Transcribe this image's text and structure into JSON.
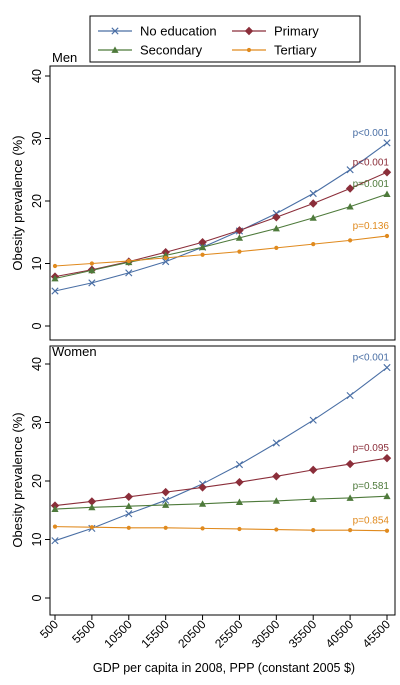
{
  "legend": {
    "items": [
      {
        "label": "No education",
        "color": "#4a6fa5",
        "marker": "x"
      },
      {
        "label": "Primary",
        "color": "#8b2e3a",
        "marker": "diamond"
      },
      {
        "label": "Secondary",
        "color": "#4e7a3b",
        "marker": "triangle"
      },
      {
        "label": "Tertiary",
        "color": "#e08a1e",
        "marker": "dot"
      }
    ]
  },
  "shared": {
    "ylabel": "Obesity prevalence (%)",
    "xlabel": "GDP per capita in 2008, PPP (constant 2005 $)"
  },
  "chart_data": [
    {
      "type": "line",
      "title": "Men",
      "xlabel": "GDP per capita in 2008, PPP (constant 2005 $)",
      "ylabel": "Obesity prevalence (%)",
      "x": [
        500,
        5500,
        10500,
        15500,
        20500,
        25500,
        30500,
        35500,
        40500,
        45500
      ],
      "ylim": [
        0,
        40
      ],
      "yticks": [
        0,
        10,
        20,
        30,
        40
      ],
      "grid": false,
      "legend_position": "top",
      "series": [
        {
          "name": "No education",
          "color": "#4a6fa5",
          "marker": "x",
          "values": [
            5.6,
            6.9,
            8.5,
            10.3,
            12.6,
            15.2,
            18.0,
            21.2,
            25.0,
            29.3
          ],
          "pvalue": "p<0.001"
        },
        {
          "name": "Primary",
          "color": "#8b2e3a",
          "marker": "diamond",
          "values": [
            7.9,
            9.0,
            10.3,
            11.8,
            13.4,
            15.3,
            17.4,
            19.6,
            22.0,
            24.6
          ],
          "pvalue": "p<0.001"
        },
        {
          "name": "Secondary",
          "color": "#4e7a3b",
          "marker": "triangle",
          "values": [
            7.6,
            8.9,
            10.2,
            11.3,
            12.6,
            14.1,
            15.6,
            17.3,
            19.1,
            21.1
          ],
          "pvalue": "p=0.001"
        },
        {
          "name": "Tertiary",
          "color": "#e08a1e",
          "marker": "dot",
          "values": [
            9.6,
            10.0,
            10.4,
            10.9,
            11.4,
            11.9,
            12.5,
            13.1,
            13.7,
            14.4
          ],
          "pvalue": "p=0.136"
        }
      ]
    },
    {
      "type": "line",
      "title": "Women",
      "xlabel": "GDP per capita in 2008, PPP (constant 2005 $)",
      "ylabel": "Obesity prevalence (%)",
      "x": [
        500,
        5500,
        10500,
        15500,
        20500,
        25500,
        30500,
        35500,
        40500,
        45500
      ],
      "ylim": [
        0,
        40
      ],
      "yticks": [
        0,
        10,
        20,
        30,
        40
      ],
      "grid": false,
      "legend_position": "top",
      "series": [
        {
          "name": "No education",
          "color": "#4a6fa5",
          "marker": "x",
          "values": [
            9.8,
            11.9,
            14.4,
            16.7,
            19.5,
            22.8,
            26.5,
            30.4,
            34.6,
            39.4
          ],
          "pvalue": "p<0.001"
        },
        {
          "name": "Primary",
          "color": "#8b2e3a",
          "marker": "diamond",
          "values": [
            15.8,
            16.5,
            17.3,
            18.1,
            18.9,
            19.8,
            20.8,
            21.9,
            22.9,
            23.9
          ],
          "pvalue": "p=0.095"
        },
        {
          "name": "Secondary",
          "color": "#4e7a3b",
          "marker": "triangle",
          "values": [
            15.2,
            15.5,
            15.7,
            15.9,
            16.1,
            16.4,
            16.6,
            16.9,
            17.1,
            17.4
          ],
          "pvalue": "p=0.581"
        },
        {
          "name": "Tertiary",
          "color": "#e08a1e",
          "marker": "dot",
          "values": [
            12.2,
            12.1,
            12.0,
            12.0,
            11.9,
            11.8,
            11.7,
            11.6,
            11.6,
            11.5
          ],
          "pvalue": "p=0.854"
        }
      ]
    }
  ]
}
